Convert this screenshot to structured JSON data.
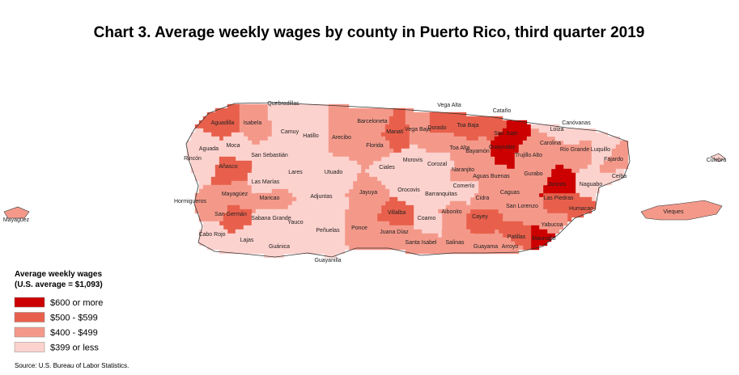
{
  "title": "Chart 3. Average weekly wages by county in Puerto Rico, third quarter 2019",
  "legend": {
    "title": "Average weekly wages",
    "subtitle": "(U.S. average = $1,093)",
    "classes": [
      {
        "label": "$600 or more",
        "color": "#cc0000"
      },
      {
        "label": "$500 - $599",
        "color": "#e8604c"
      },
      {
        "label": "$400 - $499",
        "color": "#f4998a"
      },
      {
        "label": "$399 or less",
        "color": "#fcd2ce"
      }
    ]
  },
  "municipalities": [
    {
      "name": "Aguadilla",
      "color": "#e8604c"
    },
    {
      "name": "Isabela",
      "color": "#f4998a"
    },
    {
      "name": "Quebradillas",
      "color": "#fcd2ce"
    },
    {
      "name": "Camuy",
      "color": "#fcd2ce"
    },
    {
      "name": "Hatillo",
      "color": "#fcd2ce"
    },
    {
      "name": "Arecibo",
      "color": "#f4998a"
    },
    {
      "name": "Barceloneta",
      "color": "#f4998a"
    },
    {
      "name": "Manatí",
      "color": "#e8604c"
    },
    {
      "name": "Vega Baja",
      "color": "#f4998a"
    },
    {
      "name": "Vega Alta",
      "color": "#f4998a"
    },
    {
      "name": "Dorado",
      "color": "#e8604c"
    },
    {
      "name": "Toa Baja",
      "color": "#e8604c"
    },
    {
      "name": "Cataño",
      "color": "#e8604c"
    },
    {
      "name": "San Juan",
      "color": "#cc0000"
    },
    {
      "name": "Guaynabo",
      "color": "#cc0000"
    },
    {
      "name": "Carolina",
      "color": "#f4998a"
    },
    {
      "name": "Loíza",
      "color": "#fcd2ce"
    },
    {
      "name": "Canóvanas",
      "color": "#fcd2ce"
    },
    {
      "name": "Río Grande",
      "color": "#f4998a"
    },
    {
      "name": "Luquillo",
      "color": "#fcd2ce"
    },
    {
      "name": "Fajardo",
      "color": "#f4998a"
    },
    {
      "name": "Ceiba",
      "color": "#fcd2ce"
    },
    {
      "name": "Naguabo",
      "color": "#fcd2ce"
    },
    {
      "name": "Humacao",
      "color": "#e8604c"
    },
    {
      "name": "Las Piedras",
      "color": "#e8604c"
    },
    {
      "name": "Juncos",
      "color": "#cc0000"
    },
    {
      "name": "Gurabo",
      "color": "#f4998a"
    },
    {
      "name": "Trujillo Alto",
      "color": "#f4998a"
    },
    {
      "name": "Caguas",
      "color": "#f4998a"
    },
    {
      "name": "San Lorenzo",
      "color": "#f4998a"
    },
    {
      "name": "Yabucoa",
      "color": "#f4998a"
    },
    {
      "name": "Maunabo",
      "color": "#cc0000"
    },
    {
      "name": "Patillas",
      "color": "#e8604c"
    },
    {
      "name": "Arroyo",
      "color": "#f4998a"
    },
    {
      "name": "Guayama",
      "color": "#f4998a"
    },
    {
      "name": "Cayey",
      "color": "#e8604c"
    },
    {
      "name": "Cidra",
      "color": "#f4998a"
    },
    {
      "name": "Aguas Buenas",
      "color": "#f4998a"
    },
    {
      "name": "Comerío",
      "color": "#fcd2ce"
    },
    {
      "name": "Bayamón",
      "color": "#f4998a"
    },
    {
      "name": "Toa Alta",
      "color": "#f4998a"
    },
    {
      "name": "Naranjito",
      "color": "#f4998a"
    },
    {
      "name": "Corozal",
      "color": "#fcd2ce"
    },
    {
      "name": "Morovis",
      "color": "#fcd2ce"
    },
    {
      "name": "Ciales",
      "color": "#fcd2ce"
    },
    {
      "name": "Florida",
      "color": "#f4998a"
    },
    {
      "name": "Orocovis",
      "color": "#fcd2ce"
    },
    {
      "name": "Barranquitas",
      "color": "#fcd2ce"
    },
    {
      "name": "Aibonito",
      "color": "#f4998a"
    },
    {
      "name": "Coamo",
      "color": "#fcd2ce"
    },
    {
      "name": "Villalba",
      "color": "#e8604c"
    },
    {
      "name": "Juana Díaz",
      "color": "#f4998a"
    },
    {
      "name": "Santa Isabel",
      "color": "#f4998a"
    },
    {
      "name": "Salinas",
      "color": "#f4998a"
    },
    {
      "name": "Ponce",
      "color": "#f4998a"
    },
    {
      "name": "Jayuya",
      "color": "#f4998a"
    },
    {
      "name": "Utuado",
      "color": "#fcd2ce"
    },
    {
      "name": "Adjuntas",
      "color": "#fcd2ce"
    },
    {
      "name": "Lares",
      "color": "#fcd2ce"
    },
    {
      "name": "San Sebastián",
      "color": "#fcd2ce"
    },
    {
      "name": "Moca",
      "color": "#fcd2ce"
    },
    {
      "name": "Aguada",
      "color": "#fcd2ce"
    },
    {
      "name": "Rincón",
      "color": "#fcd2ce"
    },
    {
      "name": "Añasco",
      "color": "#e8604c"
    },
    {
      "name": "Mayagüez",
      "color": "#f4998a"
    },
    {
      "name": "Las Marías",
      "color": "#fcd2ce"
    },
    {
      "name": "Maricao",
      "color": "#f4998a"
    },
    {
      "name": "Hormigueros",
      "color": "#f4998a"
    },
    {
      "name": "San Germán",
      "color": "#e8604c"
    },
    {
      "name": "Sabana Grande",
      "color": "#fcd2ce"
    },
    {
      "name": "Yauco",
      "color": "#fcd2ce"
    },
    {
      "name": "Cabo Rojo",
      "color": "#fcd2ce"
    },
    {
      "name": "Lajas",
      "color": "#fcd2ce"
    },
    {
      "name": "Guánica",
      "color": "#fcd2ce"
    },
    {
      "name": "Guayanilla",
      "color": "#fcd2ce"
    },
    {
      "name": "Peñuelas",
      "color": "#fcd2ce"
    }
  ],
  "offshore": [
    {
      "name": "Vieques",
      "color": "#f4998a"
    },
    {
      "name": "Culebra",
      "color": "#fcd2ce"
    },
    {
      "name": "Mayagüez",
      "color": "#f4998a"
    }
  ],
  "source": "Source: U.S. Bureau of Labor Statistics."
}
